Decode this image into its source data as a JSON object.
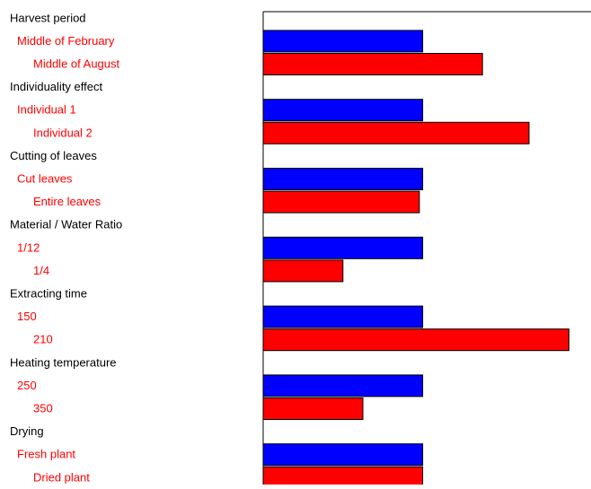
{
  "chart_data": {
    "type": "bar",
    "orientation": "horizontal",
    "title": "",
    "xlabel": "",
    "ylabel": "",
    "grid": false,
    "legend": "none",
    "axis_max": 1.0,
    "colors": {
      "level_1": "#0000ff",
      "level_2": "#ff0000",
      "factor_text": "#000000",
      "level_text": "#ff0000",
      "frame": "#000000"
    },
    "factors": [
      {
        "name": "Harvest period",
        "levels": [
          {
            "label": "Middle of February",
            "value": 0.48
          },
          {
            "label": "Middle of August",
            "value": 0.66
          }
        ]
      },
      {
        "name": "Individuality effect",
        "levels": [
          {
            "label": "Individual 1",
            "value": 0.48
          },
          {
            "label": "Individual 2",
            "value": 0.8
          }
        ]
      },
      {
        "name": "Cutting of leaves",
        "levels": [
          {
            "label": "Cut leaves",
            "value": 0.48
          },
          {
            "label": "Entire leaves",
            "value": 0.47
          }
        ]
      },
      {
        "name": "Material / Water Ratio",
        "levels": [
          {
            "label": "1/12",
            "value": 0.48
          },
          {
            "label": "1/4",
            "value": 0.24
          }
        ]
      },
      {
        "name": "Extracting time",
        "levels": [
          {
            "label": "150",
            "value": 0.48
          },
          {
            "label": "210",
            "value": 0.92
          }
        ]
      },
      {
        "name": "Heating temperature",
        "levels": [
          {
            "label": "250",
            "value": 0.48
          },
          {
            "label": "350",
            "value": 0.3
          }
        ]
      },
      {
        "name": "Drying",
        "levels": [
          {
            "label": "Fresh plant",
            "value": 0.48
          },
          {
            "label": "Dried plant",
            "value": 0.48
          }
        ]
      }
    ]
  }
}
